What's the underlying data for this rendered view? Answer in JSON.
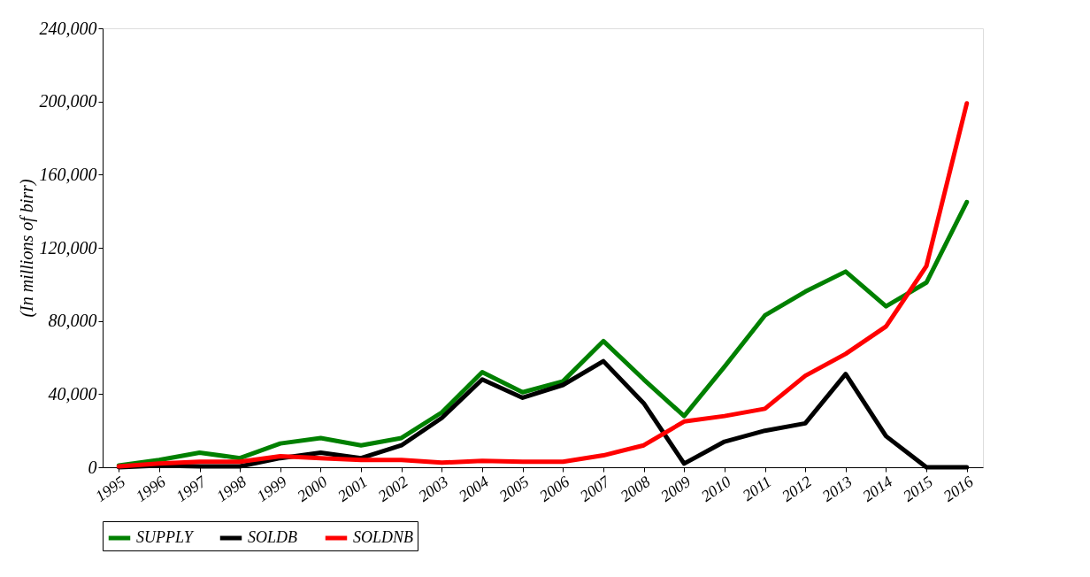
{
  "chart_data": {
    "type": "line",
    "ylabel": "(In millions of birr)",
    "categories": [
      "1995",
      "1996",
      "1997",
      "1998",
      "1999",
      "2000",
      "2001",
      "2002",
      "2003",
      "2004",
      "2005",
      "2006",
      "2007",
      "2008",
      "2009",
      "2010",
      "2011",
      "2012",
      "2013",
      "2014",
      "2015",
      "2016"
    ],
    "series": [
      {
        "name": "SUPPLY",
        "color": "#008000",
        "values": [
          1000,
          4000,
          8000,
          5000,
          13000,
          16000,
          12000,
          16000,
          30000,
          52000,
          41000,
          47000,
          69000,
          48000,
          28000,
          55000,
          83000,
          96000,
          107000,
          88000,
          101000,
          145000
        ]
      },
      {
        "name": "SOLDB",
        "color": "#000000",
        "values": [
          0,
          1000,
          500,
          500,
          5000,
          8000,
          5000,
          12000,
          27000,
          48000,
          38000,
          45000,
          58000,
          35000,
          2000,
          14000,
          20000,
          24000,
          51000,
          17000,
          0,
          0
        ]
      },
      {
        "name": "SOLDNB",
        "color": "#ff0000",
        "values": [
          500,
          2000,
          3000,
          3000,
          6000,
          5000,
          4000,
          4000,
          2500,
          3500,
          3000,
          3000,
          6500,
          12000,
          25000,
          28000,
          32000,
          50000,
          62000,
          77000,
          110000,
          199000
        ]
      }
    ],
    "ylim": [
      0,
      240000
    ],
    "yticks": [
      0,
      {
        "value": 40000,
        "label": "40,000"
      },
      {
        "value": 80000,
        "label": "80,000"
      },
      {
        "value": 120000,
        "label": "120,000"
      },
      {
        "value": 160000,
        "label": "160,000"
      },
      {
        "value": 200000,
        "label": "200,000"
      },
      {
        "value": 240000,
        "label": "240,000"
      }
    ],
    "grid": false,
    "legend": "bottom",
    "line_style": "solid",
    "marker": "none"
  }
}
